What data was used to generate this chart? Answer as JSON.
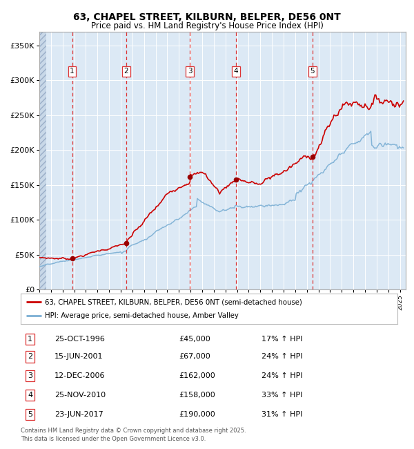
{
  "title": "63, CHAPEL STREET, KILBURN, BELPER, DE56 0NT",
  "subtitle": "Price paid vs. HM Land Registry's House Price Index (HPI)",
  "legend_line1": "63, CHAPEL STREET, KILBURN, BELPER, DE56 0NT (semi-detached house)",
  "legend_line2": "HPI: Average price, semi-detached house, Amber Valley",
  "footer_line1": "Contains HM Land Registry data © Crown copyright and database right 2025.",
  "footer_line2": "This data is licensed under the Open Government Licence v3.0.",
  "red_color": "#cc0000",
  "blue_color": "#7bafd4",
  "sale_marker_color": "#990000",
  "vline_color": "#dd3333",
  "bg_color": "#dce9f5",
  "sales": [
    {
      "num": 1,
      "date_label": "25-OCT-1996",
      "price": 45000,
      "hpi_pct": "17%",
      "date_x": 1996.82
    },
    {
      "num": 2,
      "date_label": "15-JUN-2001",
      "price": 67000,
      "hpi_pct": "24%",
      "date_x": 2001.46
    },
    {
      "num": 3,
      "date_label": "12-DEC-2006",
      "price": 162000,
      "hpi_pct": "24%",
      "date_x": 2006.95
    },
    {
      "num": 4,
      "date_label": "25-NOV-2010",
      "price": 158000,
      "hpi_pct": "33%",
      "date_x": 2010.9
    },
    {
      "num": 5,
      "date_label": "23-JUN-2017",
      "price": 190000,
      "hpi_pct": "31%",
      "date_x": 2017.48
    }
  ],
  "ylim": [
    0,
    370000
  ],
  "xlim": [
    1994.0,
    2025.5
  ],
  "yticks": [
    0,
    50000,
    100000,
    150000,
    200000,
    250000,
    300000,
    350000
  ],
  "ytick_labels": [
    "£0",
    "£50K",
    "£100K",
    "£150K",
    "£200K",
    "£250K",
    "£300K",
    "£350K"
  ]
}
